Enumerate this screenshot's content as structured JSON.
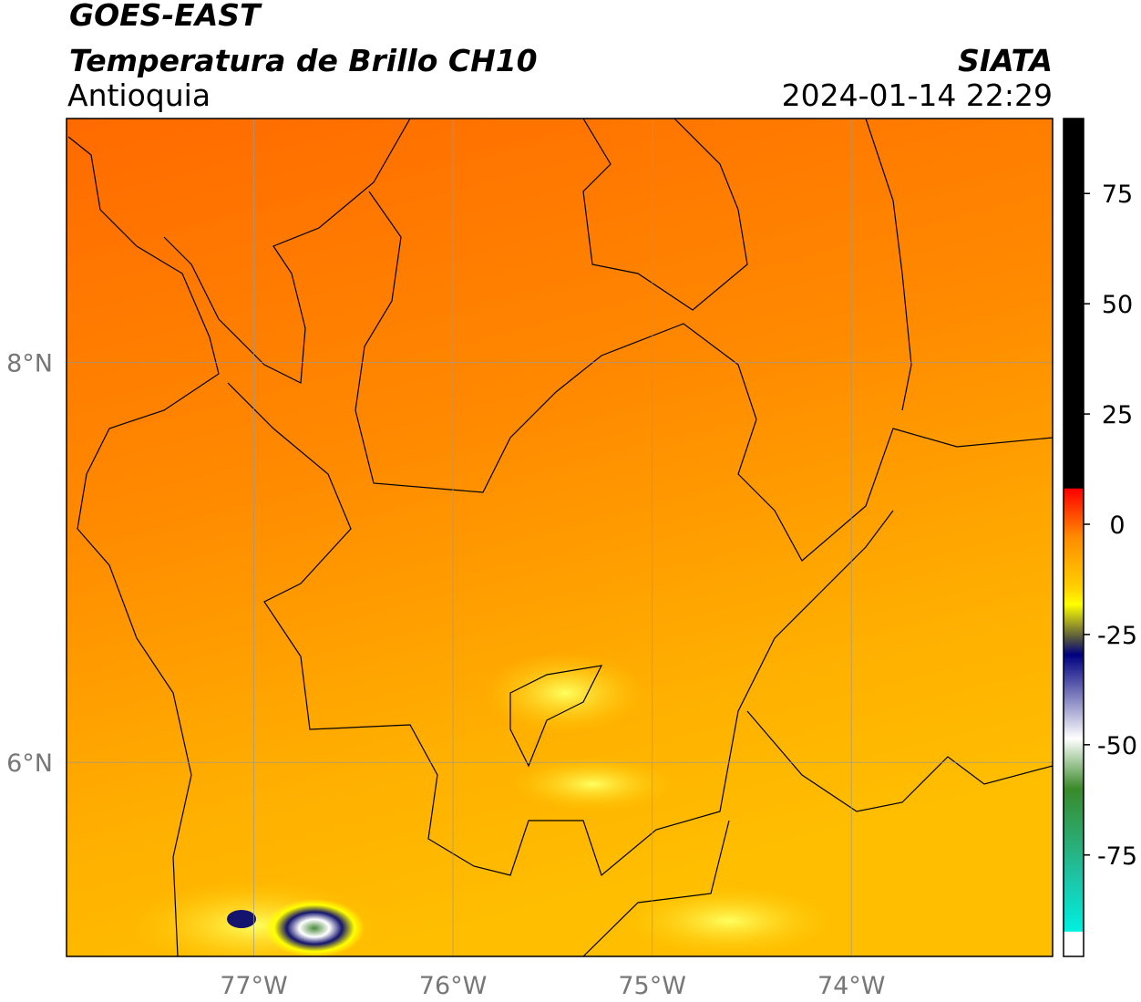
{
  "title": "GOES-EAST",
  "subtitle": "Temperatura de Brillo CH10",
  "region": "Antioquia",
  "source": "SIATA",
  "datetime": "2024-01-14 22:29",
  "map": {
    "xlim": [
      -77.94,
      -72.99
    ],
    "ylim": [
      5.03,
      9.22
    ],
    "xticks": [
      {
        "value": -77,
        "label": "77°W"
      },
      {
        "value": -76,
        "label": "76°W"
      },
      {
        "value": -75,
        "label": "75°W"
      },
      {
        "value": -74,
        "label": "74°W"
      }
    ],
    "yticks": [
      {
        "value": 8,
        "label": "8°N"
      },
      {
        "value": 6,
        "label": "6°N"
      }
    ],
    "grid": true
  },
  "colorbar": {
    "lim": [
      -98,
      92
    ],
    "ticks": [
      75,
      50,
      25,
      0,
      -25,
      -50,
      -75
    ]
  }
}
